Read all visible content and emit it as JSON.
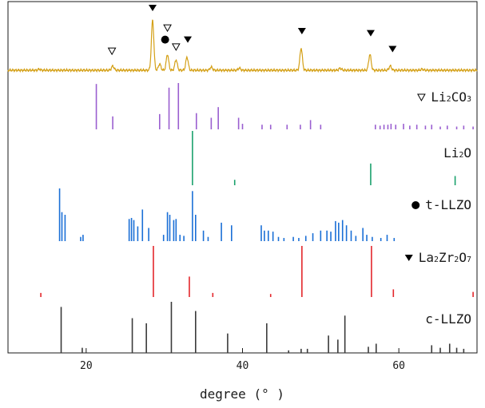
{
  "chart_data": {
    "type": "xrd-stick-pattern",
    "xlabel": "degree (° )",
    "xlim": [
      10,
      70
    ],
    "x_ticks": [
      20,
      40,
      60
    ],
    "y_axis": {
      "labels": false
    },
    "colors": {
      "measured": "#d4a017",
      "Li2CO3": "#9a5fd0",
      "Li2O": "#1aa16c",
      "t-LLZO": "#1a6fd6",
      "La2Zr2O7": "#e3262b",
      "c-LLZO": "#3a3a3a"
    },
    "measured_peaks": [
      [
        14.0,
        0.02
      ],
      [
        23.4,
        0.08
      ],
      [
        28.5,
        0.95
      ],
      [
        29.4,
        0.12
      ],
      [
        30.4,
        0.3
      ],
      [
        31.5,
        0.2
      ],
      [
        32.9,
        0.25
      ],
      [
        36.0,
        0.06
      ],
      [
        39.6,
        0.04
      ],
      [
        47.5,
        0.42
      ],
      [
        52.5,
        0.04
      ],
      [
        56.3,
        0.3
      ],
      [
        58.9,
        0.08
      ],
      [
        63.0,
        0.02
      ]
    ],
    "markers": [
      {
        "x": 23.3,
        "y": 0.18,
        "symbol": "open-triangle",
        "phase": "Li2CO3"
      },
      {
        "x": 28.5,
        "y": 1.0,
        "symbol": "filled-triangle",
        "phase": "La2Zr2O7"
      },
      {
        "x": 30.4,
        "y": 0.62,
        "symbol": "open-triangle",
        "phase": "Li2CO3"
      },
      {
        "x": 30.1,
        "y": 0.4,
        "symbol": "dot",
        "phase": "t-LLZO"
      },
      {
        "x": 31.5,
        "y": 0.26,
        "symbol": "open-triangle",
        "phase": "Li2CO3"
      },
      {
        "x": 33.0,
        "y": 0.4,
        "symbol": "filled-triangle",
        "phase": "La2Zr2O7"
      },
      {
        "x": 47.6,
        "y": 0.56,
        "symbol": "filled-triangle",
        "phase": "La2Zr2O7"
      },
      {
        "x": 56.4,
        "y": 0.52,
        "symbol": "filled-triangle",
        "phase": "La2Zr2O7"
      },
      {
        "x": 59.2,
        "y": 0.22,
        "symbol": "filled-triangle",
        "phase": "La2Zr2O7"
      }
    ],
    "references": [
      {
        "name": "Li2CO3",
        "label_main": "Li",
        "label_sub1": "2",
        "label_mid": "CO",
        "label_sub2": "3",
        "marker": "open-triangle",
        "peaks": [
          [
            21.3,
            0.98
          ],
          [
            23.4,
            0.28
          ],
          [
            29.4,
            0.33
          ],
          [
            30.6,
            0.9
          ],
          [
            31.8,
            1.0
          ],
          [
            34.1,
            0.35
          ],
          [
            36.0,
            0.25
          ],
          [
            36.9,
            0.48
          ],
          [
            39.5,
            0.25
          ],
          [
            40.0,
            0.12
          ],
          [
            42.5,
            0.1
          ],
          [
            43.6,
            0.1
          ],
          [
            45.7,
            0.1
          ],
          [
            47.4,
            0.1
          ],
          [
            48.7,
            0.2
          ],
          [
            50.0,
            0.1
          ],
          [
            57.0,
            0.1
          ],
          [
            57.6,
            0.08
          ],
          [
            58.1,
            0.1
          ],
          [
            58.6,
            0.1
          ],
          [
            59.0,
            0.12
          ],
          [
            59.6,
            0.1
          ],
          [
            60.6,
            0.12
          ],
          [
            61.4,
            0.08
          ],
          [
            62.3,
            0.1
          ],
          [
            63.4,
            0.08
          ],
          [
            64.2,
            0.1
          ],
          [
            65.3,
            0.06
          ],
          [
            66.2,
            0.08
          ],
          [
            67.4,
            0.06
          ],
          [
            68.3,
            0.08
          ],
          [
            69.5,
            0.06
          ]
        ]
      },
      {
        "name": "Li2O",
        "label_main": "Li",
        "label_sub1": "2",
        "label_mid": "O",
        "label_sub2": "",
        "marker": "",
        "peaks": [
          [
            33.6,
            1.0
          ],
          [
            39.0,
            0.1
          ],
          [
            56.4,
            0.4
          ],
          [
            67.2,
            0.17
          ]
        ]
      },
      {
        "name": "t-LLZO",
        "label_main": "t-LLZO",
        "label_sub1": "",
        "label_mid": "",
        "label_sub2": "",
        "marker": "dot",
        "peaks": [
          [
            16.6,
            1.0
          ],
          [
            16.9,
            0.55
          ],
          [
            17.3,
            0.5
          ],
          [
            19.3,
            0.08
          ],
          [
            19.6,
            0.12
          ],
          [
            25.5,
            0.42
          ],
          [
            25.8,
            0.44
          ],
          [
            26.1,
            0.4
          ],
          [
            26.6,
            0.28
          ],
          [
            27.2,
            0.6
          ],
          [
            28.0,
            0.25
          ],
          [
            29.9,
            0.12
          ],
          [
            30.4,
            0.55
          ],
          [
            30.7,
            0.5
          ],
          [
            31.2,
            0.4
          ],
          [
            31.5,
            0.42
          ],
          [
            32.0,
            0.12
          ],
          [
            32.5,
            0.1
          ],
          [
            33.6,
            0.95
          ],
          [
            34.0,
            0.5
          ],
          [
            35.0,
            0.2
          ],
          [
            35.6,
            0.08
          ],
          [
            37.3,
            0.35
          ],
          [
            38.6,
            0.3
          ],
          [
            42.4,
            0.3
          ],
          [
            42.8,
            0.2
          ],
          [
            43.3,
            0.2
          ],
          [
            43.9,
            0.18
          ],
          [
            44.6,
            0.08
          ],
          [
            45.3,
            0.06
          ],
          [
            46.5,
            0.08
          ],
          [
            47.2,
            0.06
          ],
          [
            48.1,
            0.1
          ],
          [
            49.0,
            0.15
          ],
          [
            50.0,
            0.2
          ],
          [
            50.8,
            0.2
          ],
          [
            51.3,
            0.18
          ],
          [
            51.9,
            0.38
          ],
          [
            52.3,
            0.35
          ],
          [
            52.8,
            0.4
          ],
          [
            53.3,
            0.3
          ],
          [
            53.9,
            0.2
          ],
          [
            54.5,
            0.1
          ],
          [
            55.4,
            0.25
          ],
          [
            55.9,
            0.12
          ],
          [
            56.6,
            0.08
          ],
          [
            57.7,
            0.06
          ],
          [
            58.5,
            0.12
          ],
          [
            59.4,
            0.06
          ]
        ]
      },
      {
        "name": "La2Zr2O7",
        "label_main": "La",
        "label_sub1": "2",
        "label_mid": "Zr",
        "label_sub2": "2",
        "label_end": "O",
        "label_sub3": "7",
        "marker": "filled-triangle",
        "peaks": [
          [
            14.2,
            0.08
          ],
          [
            28.6,
            1.0
          ],
          [
            33.2,
            0.4
          ],
          [
            36.2,
            0.08
          ],
          [
            43.6,
            0.06
          ],
          [
            47.6,
            1.0
          ],
          [
            56.5,
            1.0
          ],
          [
            59.3,
            0.15
          ],
          [
            69.5,
            0.1
          ]
        ]
      },
      {
        "name": "c-LLZO",
        "label_main": "c-LLZO",
        "label_sub1": "",
        "label_mid": "",
        "label_sub2": "",
        "marker": "",
        "peaks": [
          [
            16.8,
            0.9
          ],
          [
            19.5,
            0.1
          ],
          [
            25.9,
            0.68
          ],
          [
            27.7,
            0.58
          ],
          [
            30.9,
            1.0
          ],
          [
            34.0,
            0.82
          ],
          [
            38.1,
            0.38
          ],
          [
            43.1,
            0.58
          ],
          [
            45.9,
            0.05
          ],
          [
            47.5,
            0.08
          ],
          [
            48.3,
            0.08
          ],
          [
            51.0,
            0.34
          ],
          [
            52.2,
            0.26
          ],
          [
            53.1,
            0.73
          ],
          [
            56.1,
            0.12
          ],
          [
            57.1,
            0.18
          ],
          [
            64.2,
            0.15
          ],
          [
            65.3,
            0.1
          ],
          [
            66.5,
            0.18
          ],
          [
            67.4,
            0.1
          ],
          [
            68.3,
            0.08
          ]
        ]
      }
    ]
  }
}
